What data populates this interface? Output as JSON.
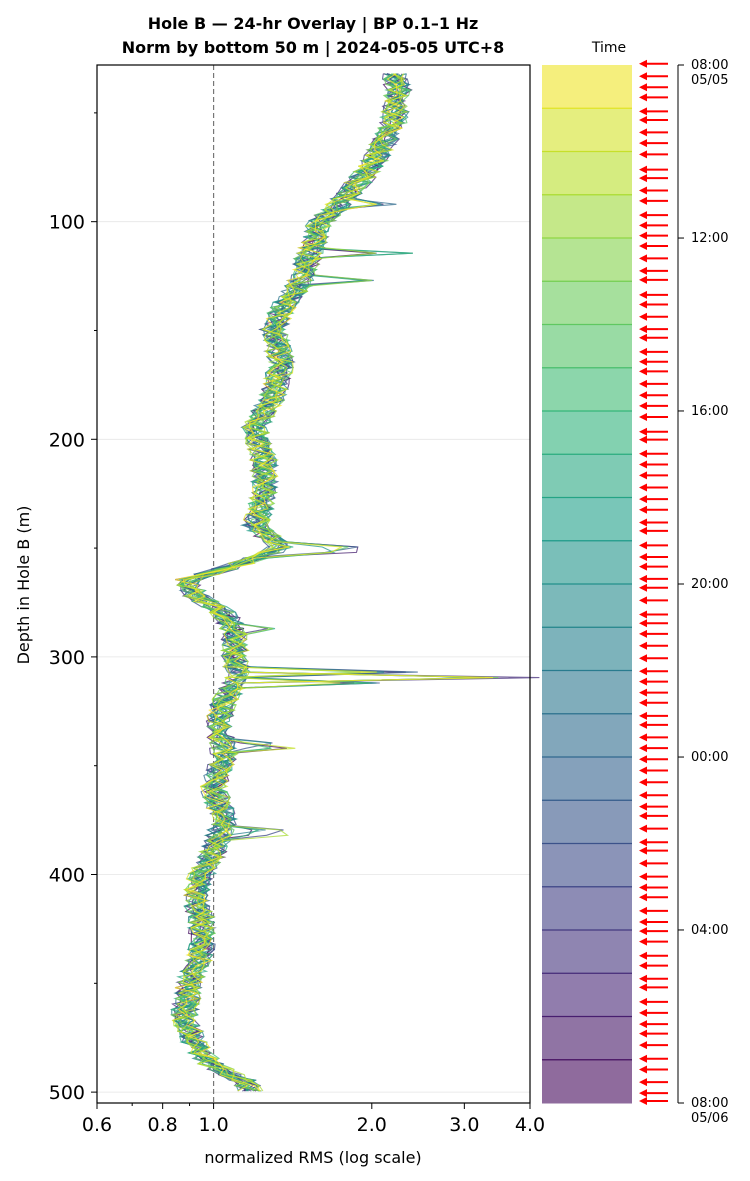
{
  "chart_data": {
    "type": "line",
    "title_line1": "Hole B — 24-hr Overlay  |  BP 0.1–1 Hz",
    "title_line2": "Norm by bottom 50 m  |  2024-05-05 UTC+8",
    "xlabel": "normalized RMS  (log scale)",
    "ylabel": "Depth in Hole B (m)",
    "x_scale": "log",
    "xlim": [
      0.6,
      4.0
    ],
    "ylim": [
      505,
      28
    ],
    "x_ticks": [
      {
        "value": 0.6,
        "label": "0.6"
      },
      {
        "value": 0.8,
        "label": "0.8"
      },
      {
        "value": 1.0,
        "label": "1.0"
      },
      {
        "value": 2.0,
        "label": "2.0"
      },
      {
        "value": 3.0,
        "label": "3.0"
      },
      {
        "value": 4.0,
        "label": "4.0"
      }
    ],
    "y_ticks": [
      {
        "value": 100,
        "label": "100"
      },
      {
        "value": 200,
        "label": "200"
      },
      {
        "value": 300,
        "label": "300"
      },
      {
        "value": 400,
        "label": "400"
      },
      {
        "value": 500,
        "label": "500"
      }
    ],
    "y_minor_ticks": [
      50,
      150,
      250,
      350,
      450
    ],
    "reference_line_x": 1.0,
    "grid": "horizontal",
    "series_count": 24,
    "base_profile": [
      [
        32,
        2.2
      ],
      [
        40,
        2.25
      ],
      [
        55,
        2.2
      ],
      [
        70,
        2.05
      ],
      [
        85,
        1.85
      ],
      [
        100,
        1.6
      ],
      [
        110,
        1.55
      ],
      [
        120,
        1.5
      ],
      [
        130,
        1.45
      ],
      [
        140,
        1.35
      ],
      [
        150,
        1.3
      ],
      [
        165,
        1.35
      ],
      [
        180,
        1.3
      ],
      [
        195,
        1.2
      ],
      [
        210,
        1.25
      ],
      [
        225,
        1.25
      ],
      [
        240,
        1.2
      ],
      [
        250,
        1.35
      ],
      [
        258,
        1.1
      ],
      [
        265,
        0.88
      ],
      [
        272,
        0.93
      ],
      [
        280,
        1.05
      ],
      [
        290,
        1.1
      ],
      [
        300,
        1.1
      ],
      [
        310,
        1.12
      ],
      [
        320,
        1.05
      ],
      [
        330,
        1.02
      ],
      [
        345,
        1.05
      ],
      [
        360,
        1.0
      ],
      [
        375,
        1.05
      ],
      [
        390,
        1.0
      ],
      [
        400,
        0.95
      ],
      [
        410,
        0.92
      ],
      [
        420,
        0.95
      ],
      [
        435,
        0.95
      ],
      [
        450,
        0.9
      ],
      [
        465,
        0.88
      ],
      [
        478,
        0.92
      ],
      [
        488,
        1.0
      ],
      [
        495,
        1.15
      ],
      [
        500,
        1.18
      ]
    ],
    "spikes": [
      {
        "depth": 310,
        "peak": 4.2
      },
      {
        "depth": 307,
        "peak": 2.45
      },
      {
        "depth": 312,
        "peak": 2.1
      },
      {
        "depth": 115,
        "peak": 2.4
      },
      {
        "depth": 127,
        "peak": 2.55
      },
      {
        "depth": 92,
        "peak": 2.3
      },
      {
        "depth": 251,
        "peak": 2.0
      },
      {
        "depth": 341,
        "peak": 1.45
      },
      {
        "depth": 381,
        "peak": 1.4
      },
      {
        "depth": 287,
        "peak": 1.35
      }
    ],
    "colorbar": {
      "label": "Time",
      "colormap": "viridis",
      "alpha": 0.6,
      "levels": 24,
      "ticks": [
        {
          "frac": 0.0,
          "label": "08:00",
          "sublabel": "05/05"
        },
        {
          "frac": 0.1667,
          "label": "12:00",
          "sublabel": ""
        },
        {
          "frac": 0.3333,
          "label": "16:00",
          "sublabel": ""
        },
        {
          "frac": 0.5,
          "label": "20:00",
          "sublabel": ""
        },
        {
          "frac": 0.6667,
          "label": "00:00",
          "sublabel": ""
        },
        {
          "frac": 0.8333,
          "label": "04:00",
          "sublabel": ""
        },
        {
          "frac": 1.0,
          "label": "08:00",
          "sublabel": "05/06"
        }
      ],
      "arrow_color": "#ff0000",
      "arrow_count": 92
    }
  }
}
